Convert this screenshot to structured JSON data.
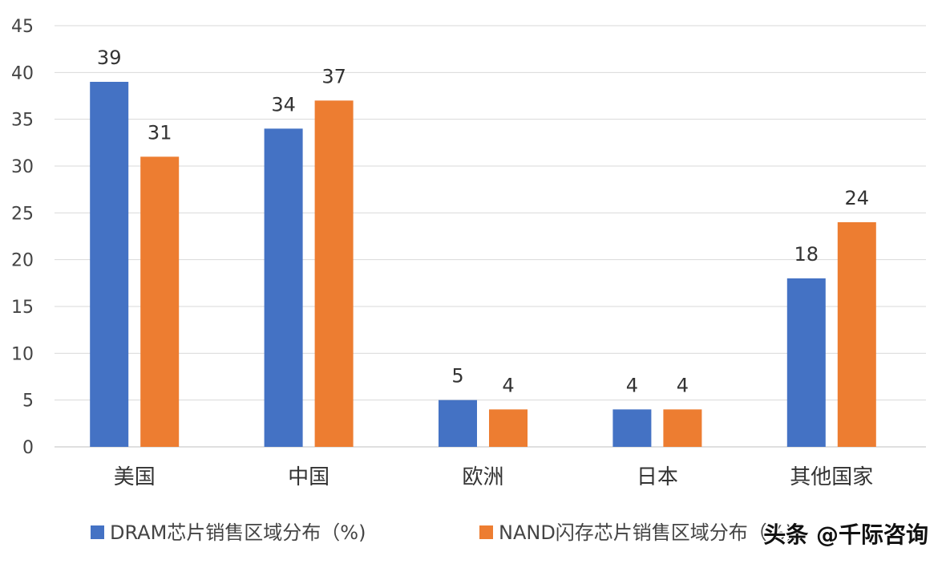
{
  "chart_data": {
    "type": "bar",
    "title": "",
    "xlabel": "",
    "ylabel": "",
    "categories": [
      "美国",
      "中国",
      "欧洲",
      "日本",
      "其他国家"
    ],
    "series": [
      {
        "name": "DRAM芯片销售区域分布（%)",
        "values": [
          39,
          34,
          5,
          4,
          18
        ],
        "color": "#4472C4"
      },
      {
        "name": "NAND闪存芯片销售区域分布（%)",
        "values": [
          31,
          37,
          4,
          4,
          24
        ],
        "color": "#ED7D31"
      }
    ],
    "ylim": [
      0,
      45
    ],
    "yticks": [
      0,
      5,
      10,
      15,
      20,
      25,
      30,
      35,
      40,
      45
    ],
    "grid": true,
    "legend_position": "bottom"
  },
  "watermark": "头条 @千际咨询"
}
